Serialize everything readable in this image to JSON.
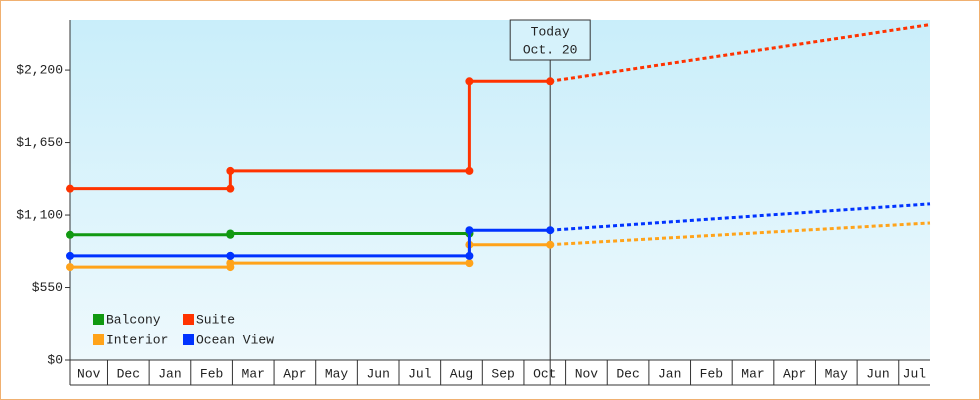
{
  "chart_data": {
    "type": "step-line",
    "annotation": {
      "title": "Today",
      "date": "Oct. 20"
    },
    "months": [
      "Nov",
      "Dec",
      "Jan",
      "Feb",
      "Mar",
      "Apr",
      "May",
      "Jun",
      "Jul",
      "Aug",
      "Sep",
      "Oct",
      "Nov",
      "Dec",
      "Jan",
      "Feb",
      "Mar",
      "Apr",
      "May",
      "Jun",
      "Jul"
    ],
    "xlim": [
      0.1,
      20.75
    ],
    "ylim": [
      0,
      2580
    ],
    "yticks": [
      {
        "value": 0,
        "label": "$0"
      },
      {
        "value": 550,
        "label": "$550"
      },
      {
        "value": 1100,
        "label": "$1,100"
      },
      {
        "value": 1650,
        "label": "$1,650"
      },
      {
        "value": 2200,
        "label": "$2,200"
      }
    ],
    "series": [
      {
        "name": "Balcony",
        "color": "#119911",
        "x": [
          0.1,
          3.95,
          3.95,
          9.69,
          9.69
        ],
        "values": [
          950,
          950,
          960,
          960,
          960
        ]
      },
      {
        "name": "Suite",
        "color": "#ff3300",
        "x": [
          0.1,
          3.95,
          3.95,
          9.69,
          9.69,
          11.63
        ],
        "values": [
          1300,
          1300,
          1435,
          1435,
          2115,
          2115
        ],
        "forecast_x": [
          11.63,
          20.75
        ],
        "forecast_values": [
          2115,
          2545
        ]
      },
      {
        "name": "Interior",
        "color": "#ffa31a",
        "x": [
          0.1,
          3.95,
          3.95,
          9.69,
          9.69,
          11.63
        ],
        "values": [
          705,
          705,
          735,
          735,
          875,
          875
        ],
        "forecast_x": [
          11.63,
          20.75
        ],
        "forecast_values": [
          875,
          1040
        ]
      },
      {
        "name": "Ocean View",
        "color": "#0033ff",
        "x": [
          0.1,
          3.95,
          3.95,
          9.69,
          9.69,
          11.63
        ],
        "values": [
          790,
          790,
          790,
          790,
          985,
          985
        ],
        "forecast_x": [
          11.63,
          20.75
        ],
        "forecast_values": [
          985,
          1185
        ]
      }
    ]
  }
}
